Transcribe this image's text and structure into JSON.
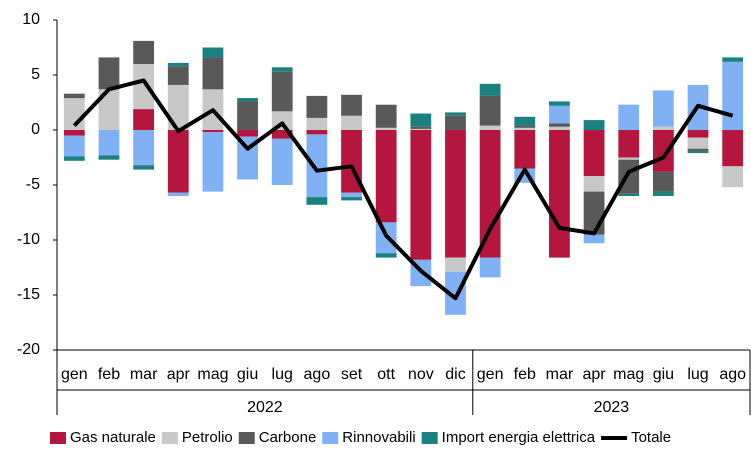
{
  "chart_data": {
    "type": "bar",
    "stacked": true,
    "categories": [
      "gen",
      "feb",
      "mar",
      "apr",
      "mag",
      "giu",
      "lug",
      "ago",
      "set",
      "ott",
      "nov",
      "dic",
      "gen",
      "feb",
      "mar",
      "apr",
      "mag",
      "giu",
      "lug",
      "ago"
    ],
    "groups": [
      {
        "label": "2022",
        "count": 12
      },
      {
        "label": "2023",
        "count": 8
      }
    ],
    "ylim": [
      -20,
      10
    ],
    "yticks": [
      -20,
      -15,
      -10,
      -5,
      0,
      5,
      10
    ],
    "grid": false,
    "legend": "bottom",
    "series": [
      {
        "name": "Gas naturale",
        "color": "#b5163e",
        "values": [
          -0.5,
          0,
          1.9,
          -5.7,
          -0.2,
          -0.6,
          -0.8,
          -0.4,
          -5.7,
          -8.4,
          -11.8,
          -11.6,
          -11.6,
          -3.5,
          -11.6,
          -4.2,
          -2.5,
          -3.8,
          -0.7,
          -3.3
        ]
      },
      {
        "name": "Petrolio",
        "color": "#c8c8c8",
        "values": [
          2.9,
          3.7,
          4.1,
          4.1,
          3.7,
          0,
          1.7,
          1.1,
          1.3,
          0.2,
          0.1,
          -1.3,
          0.4,
          0.2,
          0.3,
          -1.4,
          -0.2,
          0.3,
          -1.0,
          -1.9
        ]
      },
      {
        "name": "Carbone",
        "color": "#595959",
        "values": [
          0.4,
          2.9,
          2.1,
          1.7,
          2.9,
          2.6,
          3.6,
          2.0,
          1.9,
          2.1,
          0.2,
          1.3,
          2.7,
          0.2,
          0.3,
          -3.9,
          -3.1,
          -1.8,
          -0.2,
          0
        ]
      },
      {
        "name": "Rinnovabili",
        "color": "#80b1f5",
        "values": [
          -1.9,
          -2.3,
          -3.2,
          -0.3,
          -5.4,
          -3.9,
          -4.2,
          -5.7,
          -0.4,
          -2.8,
          -2.4,
          -3.9,
          -1.8,
          -1.3,
          1.6,
          -0.8,
          2.3,
          3.3,
          4.1,
          6.2
        ]
      },
      {
        "name": "Import energia elettrica",
        "color": "#1a8080",
        "values": [
          -0.4,
          -0.4,
          -0.4,
          0.3,
          0.9,
          0.3,
          0.4,
          -0.7,
          -0.3,
          -0.4,
          1.2,
          0.3,
          1.1,
          0.8,
          0.4,
          0.9,
          -0.2,
          -0.4,
          -0.2,
          0.4
        ]
      },
      {
        "name": "Totale",
        "color": "#000000",
        "kind": "line",
        "values": [
          0.4,
          3.7,
          4.5,
          -0.1,
          1.8,
          -1.7,
          0.6,
          -3.7,
          -3.3,
          -9.6,
          -12.8,
          -15.3,
          -9.0,
          -3.6,
          -8.9,
          -9.4,
          -3.8,
          -2.5,
          2.2,
          1.3
        ]
      }
    ]
  }
}
